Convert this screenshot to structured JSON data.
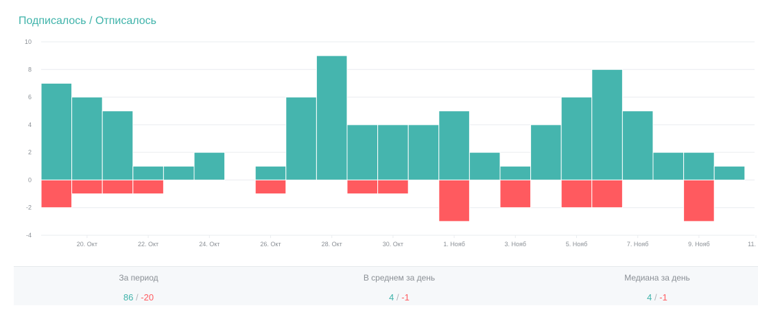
{
  "title": "Подписалось / Отписалось",
  "colors": {
    "subscribed": "#45b5ae",
    "unsubscribed": "#ff5a5f",
    "title": "#3fb3aa",
    "grid": "#e9ecef",
    "axis_text": "#8a8f95"
  },
  "chart_data": {
    "type": "bar",
    "ylim": [
      -4,
      10
    ],
    "yticks": [
      10,
      8,
      6,
      4,
      2,
      0,
      -2,
      -4
    ],
    "xtick_labels": [
      "20. Окт",
      "22. Окт",
      "24. Окт",
      "26. Окт",
      "28. Окт",
      "30. Окт",
      "1. Нояб",
      "3. Нояб",
      "5. Нояб",
      "7. Нояб",
      "9. Нояб",
      "11."
    ],
    "grid": true,
    "series": [
      {
        "values": [
          7,
          6,
          5,
          1,
          1,
          2,
          0,
          1,
          6,
          9,
          4,
          4,
          4,
          5,
          2,
          1,
          4,
          6,
          8,
          5,
          2,
          2,
          1
        ]
      },
      {
        "values": [
          -2,
          -1,
          -1,
          -1,
          0,
          0,
          0,
          -1,
          0,
          0,
          -1,
          -1,
          0,
          -3,
          0,
          -2,
          0,
          -2,
          -2,
          0,
          0,
          -3,
          0
        ]
      }
    ]
  },
  "stats": [
    {
      "label": "За период",
      "pos": "86",
      "sep": "/",
      "neg": "-20"
    },
    {
      "label": "В среднем за день",
      "pos": "4",
      "sep": "/",
      "neg": "-1"
    },
    {
      "label": "Медиана за день",
      "pos": "4",
      "sep": "/",
      "neg": "-1"
    }
  ]
}
